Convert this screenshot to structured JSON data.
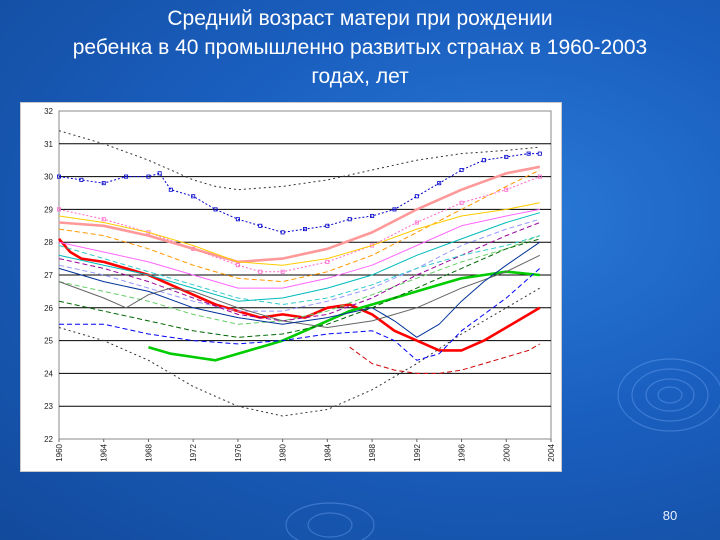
{
  "slide": {
    "title_lines": [
      "Средний возраст матери при рождении",
      "ребенка в 40 промышленно развитых странах в 1960-2003",
      "годах, лет"
    ],
    "page_number": "80",
    "colors": {
      "background": "#1a5fbf",
      "title_text": "#ffffff"
    }
  },
  "chart_data": {
    "type": "line",
    "title": "",
    "xlabel": "",
    "ylabel": "",
    "x_tick_labels": [
      "1960",
      "1964",
      "1968",
      "1972",
      "1976",
      "1980",
      "1984",
      "1988",
      "1992",
      "1996",
      "2000",
      "2004"
    ],
    "y_tick_labels": [
      "22",
      "23",
      "24",
      "25",
      "26",
      "27",
      "28",
      "29",
      "30",
      "31",
      "32"
    ],
    "xlim": [
      1960,
      2004
    ],
    "ylim": [
      22,
      32
    ],
    "grid": true,
    "legend": "none",
    "series": [
      {
        "color": "#ff0000",
        "style": "solid-thick",
        "x": [
          1960,
          1961,
          1962,
          1964,
          1966,
          1968,
          1970,
          1972,
          1974,
          1976,
          1978,
          1980,
          1982,
          1984,
          1986,
          1988,
          1990,
          1992,
          1994,
          1996,
          1998,
          2000,
          2002,
          2003
        ],
        "values": [
          28.1,
          27.7,
          27.5,
          27.4,
          27.2,
          27.0,
          26.7,
          26.4,
          26.1,
          25.9,
          25.7,
          25.8,
          25.7,
          26.0,
          26.1,
          25.8,
          25.3,
          25.0,
          24.7,
          24.7,
          25.0,
          25.4,
          25.8,
          26.0
        ]
      },
      {
        "color": "#00cc00",
        "style": "solid-thick",
        "x": [
          1968,
          1970,
          1972,
          1974,
          1976,
          1978,
          1980,
          1982,
          1984,
          1986,
          1988,
          1990,
          1992,
          1994,
          1996,
          1998,
          2000,
          2003
        ],
        "values": [
          24.8,
          24.6,
          24.5,
          24.4,
          24.6,
          24.8,
          25.0,
          25.3,
          25.6,
          25.9,
          26.1,
          26.3,
          26.5,
          26.7,
          26.9,
          27.0,
          27.1,
          27.0
        ]
      },
      {
        "color": "#0000cc",
        "style": "dotted-markers",
        "x": [
          1960,
          1962,
          1964,
          1966,
          1968,
          1969,
          1970,
          1972,
          1974,
          1976,
          1978,
          1980,
          1982,
          1984,
          1986,
          1988,
          1990,
          1992,
          1994,
          1996,
          1998,
          2000,
          2002,
          2003
        ],
        "values": [
          30.0,
          29.9,
          29.8,
          30.0,
          30.0,
          30.1,
          29.6,
          29.4,
          29.0,
          28.7,
          28.5,
          28.3,
          28.4,
          28.5,
          28.7,
          28.8,
          29.0,
          29.4,
          29.8,
          30.2,
          30.5,
          30.6,
          30.7,
          30.7
        ]
      },
      {
        "color": "#ff66cc",
        "style": "dotted-markers",
        "x": [
          1960,
          1964,
          1968,
          1972,
          1976,
          1978,
          1980,
          1984,
          1988,
          1992,
          1996,
          2000,
          2003
        ],
        "values": [
          29.0,
          28.7,
          28.3,
          27.8,
          27.3,
          27.1,
          27.1,
          27.4,
          27.9,
          28.6,
          29.2,
          29.6,
          30.0
        ]
      },
      {
        "color": "#ff9999",
        "style": "solid-thick",
        "x": [
          1960,
          1964,
          1968,
          1972,
          1976,
          1980,
          1984,
          1988,
          1992,
          1996,
          2000,
          2003
        ],
        "values": [
          28.6,
          28.5,
          28.2,
          27.8,
          27.4,
          27.5,
          27.8,
          28.3,
          29.0,
          29.6,
          30.1,
          30.3
        ]
      },
      {
        "color": "#333333",
        "style": "dotted",
        "x": [
          1960,
          1964,
          1968,
          1972,
          1974,
          1976,
          1980,
          1984,
          1988,
          1992,
          1996,
          2000,
          2003
        ],
        "values": [
          31.4,
          31.0,
          30.5,
          29.9,
          29.7,
          29.6,
          29.7,
          29.9,
          30.2,
          30.5,
          30.7,
          30.8,
          30.9
        ]
      },
      {
        "color": "#333333",
        "style": "dotted",
        "x": [
          1960,
          1964,
          1968,
          1972,
          1976,
          1980,
          1984,
          1988,
          1992,
          1996,
          2000,
          2003
        ],
        "values": [
          25.4,
          25.0,
          24.4,
          23.6,
          23.0,
          22.7,
          22.9,
          23.5,
          24.3,
          25.2,
          26.0,
          26.6
        ]
      },
      {
        "color": "#ff9900",
        "style": "dashed",
        "x": [
          1960,
          1964,
          1968,
          1972,
          1976,
          1980,
          1984,
          1988,
          1992,
          1996,
          2000,
          2003
        ],
        "values": [
          28.4,
          28.2,
          27.8,
          27.3,
          26.9,
          26.8,
          27.1,
          27.6,
          28.3,
          29.0,
          29.7,
          30.2
        ]
      },
      {
        "color": "#00bbbb",
        "style": "solid",
        "x": [
          1960,
          1964,
          1968,
          1972,
          1976,
          1980,
          1984,
          1988,
          1992,
          1996,
          2000,
          2003
        ],
        "values": [
          27.6,
          27.3,
          27.0,
          26.6,
          26.2,
          26.3,
          26.6,
          27.0,
          27.6,
          28.1,
          28.6,
          28.9
        ]
      },
      {
        "color": "#9999ff",
        "style": "dashed",
        "x": [
          1960,
          1964,
          1968,
          1972,
          1976,
          1980,
          1984,
          1988,
          1992,
          1996,
          2000,
          2003
        ],
        "values": [
          27.3,
          27.0,
          26.6,
          26.2,
          25.9,
          25.9,
          26.2,
          26.6,
          27.2,
          27.9,
          28.4,
          28.7
        ]
      },
      {
        "color": "#66cc66",
        "style": "dashed",
        "x": [
          1960,
          1964,
          1968,
          1972,
          1976,
          1980,
          1984,
          1988,
          1992,
          1996,
          2000,
          2003
        ],
        "values": [
          26.8,
          26.5,
          26.2,
          25.8,
          25.5,
          25.6,
          25.9,
          26.4,
          26.9,
          27.4,
          27.8,
          28.2
        ]
      },
      {
        "color": "#ffcc00",
        "style": "solid",
        "x": [
          1960,
          1964,
          1968,
          1972,
          1976,
          1980,
          1984,
          1988,
          1992,
          1996,
          2000,
          2003
        ],
        "values": [
          28.8,
          28.6,
          28.3,
          27.9,
          27.4,
          27.3,
          27.5,
          27.9,
          28.4,
          28.8,
          29.0,
          29.2
        ]
      },
      {
        "color": "#990099",
        "style": "dashed",
        "x": [
          1960,
          1964,
          1968,
          1972,
          1976,
          1980,
          1984,
          1988,
          1992,
          1996,
          2000,
          2003
        ],
        "values": [
          27.5,
          27.2,
          26.8,
          26.3,
          25.8,
          25.6,
          25.8,
          26.3,
          27.0,
          27.6,
          28.2,
          28.6
        ]
      },
      {
        "color": "#666666",
        "style": "solid",
        "x": [
          1960,
          1964,
          1966,
          1968,
          1970,
          1972,
          1976,
          1980,
          1984,
          1988,
          1992,
          1996,
          2000,
          2003
        ],
        "values": [
          26.8,
          26.3,
          26.0,
          26.4,
          26.6,
          26.5,
          26.0,
          25.6,
          25.4,
          25.6,
          26.0,
          26.6,
          27.1,
          27.6
        ]
      },
      {
        "color": "#0000ff",
        "style": "dashed",
        "x": [
          1960,
          1964,
          1968,
          1972,
          1976,
          1980,
          1984,
          1988,
          1990,
          1992,
          1994,
          1996,
          2000,
          2003
        ],
        "values": [
          25.5,
          25.5,
          25.2,
          25.0,
          24.9,
          25.0,
          25.2,
          25.3,
          25.0,
          24.4,
          24.6,
          25.3,
          26.3,
          27.2
        ]
      },
      {
        "color": "#003399",
        "style": "solid",
        "x": [
          1960,
          1964,
          1968,
          1972,
          1976,
          1980,
          1984,
          1988,
          1990,
          1992,
          1994,
          1996,
          1998,
          2000,
          2003
        ],
        "values": [
          27.2,
          26.8,
          26.5,
          26.0,
          25.7,
          25.5,
          25.7,
          26.0,
          25.6,
          25.1,
          25.5,
          26.2,
          26.8,
          27.3,
          28.0
        ]
      },
      {
        "color": "#cc0000",
        "style": "dashed",
        "x": [
          1986,
          1988,
          1990,
          1992,
          1994,
          1996,
          1998,
          2000,
          2002,
          2003
        ],
        "values": [
          24.8,
          24.3,
          24.1,
          24.0,
          24.0,
          24.1,
          24.3,
          24.5,
          24.7,
          24.9
        ]
      },
      {
        "color": "#006600",
        "style": "dashed",
        "x": [
          1960,
          1964,
          1968,
          1972,
          1976,
          1980,
          1984,
          1988,
          1992,
          1996,
          2000,
          2003
        ],
        "values": [
          26.2,
          25.9,
          25.6,
          25.3,
          25.1,
          25.2,
          25.5,
          26.0,
          26.6,
          27.2,
          27.8,
          28.1
        ]
      },
      {
        "color": "#ff66ff",
        "style": "solid",
        "x": [
          1960,
          1964,
          1968,
          1972,
          1976,
          1980,
          1984,
          1988,
          1992,
          1996,
          2000,
          2003
        ],
        "values": [
          28.0,
          27.7,
          27.4,
          27.0,
          26.6,
          26.6,
          26.9,
          27.3,
          27.9,
          28.5,
          28.8,
          29.0
        ]
      },
      {
        "color": "#33cccc",
        "style": "dashed",
        "x": [
          1960,
          1964,
          1968,
          1972,
          1976,
          1980,
          1984,
          1988,
          1992,
          1996,
          2000,
          2003
        ],
        "values": [
          27.9,
          27.5,
          27.1,
          26.7,
          26.3,
          26.1,
          26.3,
          26.7,
          27.2,
          27.6,
          27.9,
          28.2
        ]
      }
    ]
  }
}
